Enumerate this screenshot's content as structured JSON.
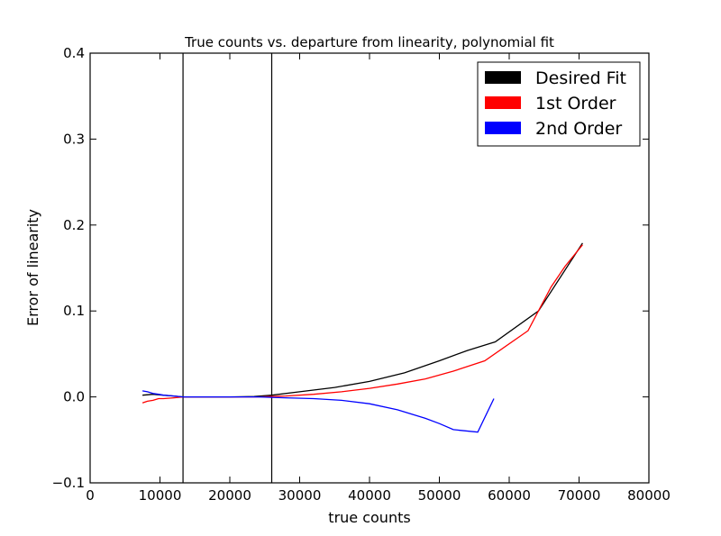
{
  "chart_data": {
    "type": "line",
    "title": "True counts vs. departure from linearity, polynomial fit",
    "xlabel": "true counts",
    "ylabel": "Error of linearity",
    "xlim": [
      0,
      80000
    ],
    "ylim": [
      -0.1,
      0.4
    ],
    "xticks": [
      0,
      10000,
      20000,
      30000,
      40000,
      50000,
      60000,
      70000,
      80000
    ],
    "yticks": [
      -0.1,
      0.0,
      0.1,
      0.2,
      0.3,
      0.4
    ],
    "xtick_labels": [
      "0",
      "10000",
      "20000",
      "30000",
      "40000",
      "50000",
      "60000",
      "70000",
      "80000"
    ],
    "ytick_labels": [
      "−0.1",
      "0.0",
      "0.1",
      "0.2",
      "0.3",
      "0.4"
    ],
    "grid": false,
    "legend_position": "top-right",
    "vertical_lines": [
      13300,
      26000
    ],
    "series": [
      {
        "name": "Desired Fit",
        "color": "#000000",
        "x": [
          7500,
          9000,
          10500,
          12000,
          13300,
          16000,
          20000,
          23500,
          26000,
          30000,
          35000,
          40000,
          45000,
          50000,
          54000,
          58000,
          64200,
          70500
        ],
        "y": [
          0.002,
          0.003,
          0.002,
          0.001,
          0.0,
          0.0,
          0.0,
          0.0005,
          0.002,
          0.006,
          0.011,
          0.018,
          0.028,
          0.042,
          0.054,
          0.064,
          0.1,
          0.179
        ]
      },
      {
        "name": "1st Order",
        "color": "#ff0000",
        "x": [
          7500,
          8200,
          9000,
          9800,
          10500,
          12000,
          13300,
          16000,
          20000,
          24000,
          28000,
          32000,
          36000,
          40000,
          44000,
          48000,
          52000,
          56500,
          62700,
          66000,
          68000,
          70500
        ],
        "y": [
          -0.007,
          -0.005,
          -0.004,
          -0.002,
          -0.002,
          -0.001,
          0.0,
          0.0,
          0.0,
          0.0,
          0.001,
          0.003,
          0.006,
          0.01,
          0.015,
          0.021,
          0.03,
          0.042,
          0.077,
          0.128,
          0.152,
          0.177
        ]
      },
      {
        "name": "2nd Order",
        "color": "#0000ff",
        "x": [
          7500,
          8200,
          9000,
          9800,
          10500,
          12000,
          13300,
          16000,
          20000,
          24000,
          28000,
          32000,
          36000,
          40000,
          44000,
          48000,
          50000,
          52000,
          55500,
          57800
        ],
        "y": [
          0.007,
          0.006,
          0.004,
          0.003,
          0.002,
          0.001,
          0.0,
          0.0,
          0.0,
          0.0,
          -0.001,
          -0.002,
          -0.004,
          -0.008,
          -0.015,
          -0.025,
          -0.031,
          -0.038,
          -0.041,
          -0.002
        ]
      }
    ]
  }
}
